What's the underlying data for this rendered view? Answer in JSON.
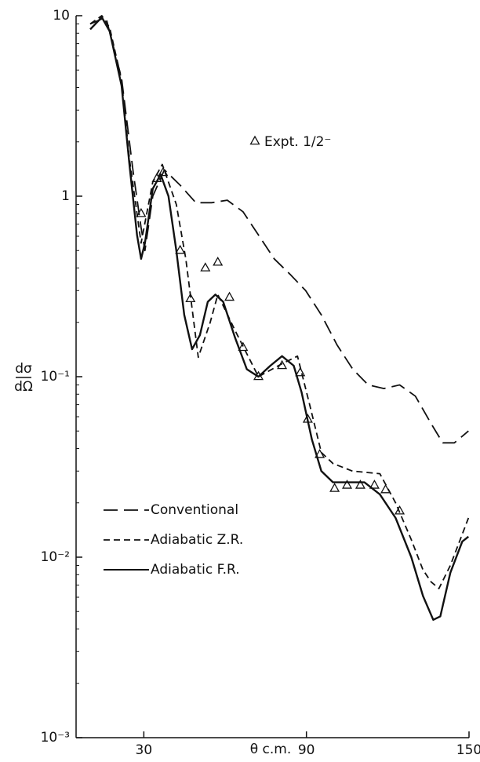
{
  "chart_data": {
    "type": "line",
    "y_label_top": "dσ",
    "y_label_bottom": "dΩ",
    "x_label": "θ c.m.",
    "log_y": true,
    "xlim": [
      5,
      150
    ],
    "ylim": [
      0.001,
      10
    ],
    "xticks": [
      30,
      90,
      150
    ],
    "yticks": [
      {
        "value": 0.001,
        "label": "10⁻³"
      },
      {
        "value": 0.01,
        "label": "10⁻²"
      },
      {
        "value": 0.1,
        "label": "10⁻¹"
      },
      1,
      10
    ],
    "legend": "lower left",
    "series": [
      {
        "name": "Conventional",
        "color": "#111111",
        "dash": "long",
        "x": [
          10.2,
          16,
          21.8,
          26.1,
          29,
          30.4,
          33.3,
          37.6,
          43.4,
          49.2,
          55,
          60.8,
          66.6,
          72.3,
          78.1,
          83.9,
          89.7,
          95.5,
          101.3,
          107.1,
          112.8,
          118.6,
          124.4,
          130.2,
          136,
          140.3,
          144.6,
          149.8
        ],
        "values": [
          9,
          9.8,
          4.5,
          1.35,
          0.67,
          0.5,
          1.0,
          1.4,
          1.15,
          0.92,
          0.92,
          0.95,
          0.82,
          0.61,
          0.45,
          0.37,
          0.3,
          0.22,
          0.15,
          0.11,
          0.09,
          0.086,
          0.09,
          0.078,
          0.055,
          0.043,
          0.043,
          0.05
        ]
      },
      {
        "name": "Adiabatic Z.R.",
        "color": "#111111",
        "dash": "short",
        "x": [
          10.2,
          14.5,
          17.4,
          21.8,
          24.7,
          29,
          33.3,
          36.8,
          42,
          45.5,
          50.1,
          54.5,
          57.3,
          63.7,
          72.3,
          81,
          86.7,
          91.2,
          95.5,
          99.8,
          107,
          117.1,
          122.9,
          128.7,
          133,
          136,
          138.9,
          143.1,
          149.8
        ],
        "values": [
          9,
          10,
          8.6,
          4.4,
          1.6,
          0.55,
          1.2,
          1.5,
          0.9,
          0.45,
          0.128,
          0.2,
          0.285,
          0.18,
          0.1,
          0.118,
          0.13,
          0.07,
          0.038,
          0.033,
          0.03,
          0.029,
          0.02,
          0.0125,
          0.0085,
          0.0073,
          0.0067,
          0.009,
          0.0165
        ]
      },
      {
        "name": "Adiabatic F.R.",
        "color": "#111111",
        "dash": "solid",
        "x": [
          10.2,
          14.5,
          17.4,
          21.8,
          24.7,
          27.5,
          29,
          30.4,
          33.3,
          36.2,
          39.1,
          42,
          44.9,
          47.8,
          50.7,
          53.6,
          56.4,
          59.3,
          63.7,
          68,
          72.3,
          76.7,
          81,
          85.3,
          88.2,
          92,
          95.5,
          99.8,
          105.6,
          111.4,
          117.1,
          122.9,
          128.7,
          133,
          136.8,
          139.4,
          143.1,
          147.5,
          149.8
        ],
        "values": [
          8.4,
          9.8,
          8.2,
          4.1,
          1.49,
          0.61,
          0.45,
          0.55,
          1.1,
          1.32,
          1.0,
          0.5,
          0.22,
          0.142,
          0.17,
          0.26,
          0.285,
          0.26,
          0.164,
          0.11,
          0.1,
          0.115,
          0.13,
          0.115,
          0.082,
          0.045,
          0.03,
          0.026,
          0.026,
          0.026,
          0.0223,
          0.0165,
          0.01,
          0.0061,
          0.0045,
          0.0047,
          0.0082,
          0.0122,
          0.013
        ]
      },
      {
        "name": "Expt. 1/2⁻",
        "color": "#111111",
        "marker": "triangle",
        "x": [
          29,
          34.8,
          37.1,
          43.4,
          47.2,
          52.7,
          57.3,
          61.6,
          66.6,
          72.3,
          81,
          87.7,
          90.5,
          94.9,
          100.4,
          105,
          109.9,
          115.1,
          119.2,
          124.4
        ],
        "values": [
          0.8,
          1.25,
          1.35,
          0.5,
          0.27,
          0.4,
          0.43,
          0.275,
          0.145,
          0.1,
          0.115,
          0.105,
          0.058,
          0.037,
          0.024,
          0.025,
          0.025,
          0.025,
          0.0236,
          0.018
        ]
      }
    ]
  }
}
